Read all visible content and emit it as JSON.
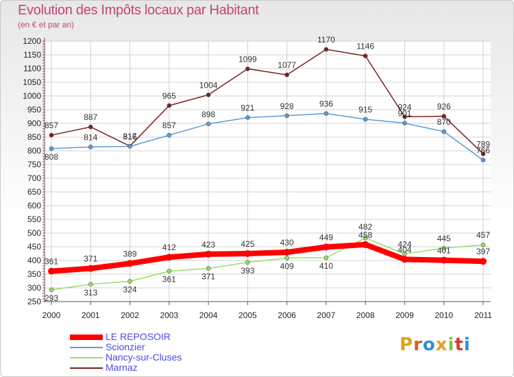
{
  "header": {
    "title": "Evolution des Impôts locaux par Habitant",
    "subtitle": "(en € et par an)"
  },
  "logo": {
    "text": "Proxiti",
    "colors": [
      "#e0a21c",
      "#e05a2a",
      "#2d8fd5",
      "#e0a21c",
      "#7cc243",
      "#d23b2a",
      "#2d8fd5"
    ]
  },
  "chart_data": {
    "type": "line",
    "x": [
      "2000",
      "2001",
      "2002",
      "2003",
      "2004",
      "2005",
      "2006",
      "2007",
      "2008",
      "2009",
      "2010",
      "2011"
    ],
    "ylim": [
      250,
      1200
    ],
    "yticks": [
      250,
      300,
      350,
      400,
      450,
      500,
      550,
      600,
      650,
      700,
      750,
      800,
      850,
      900,
      950,
      1000,
      1050,
      1100,
      1150,
      1200
    ],
    "grid": true,
    "legend_position": "bottom-left",
    "series": [
      {
        "name": "LE REPOSOIR",
        "color": "#ff0000",
        "values": [
          361,
          371,
          389,
          412,
          423,
          425,
          430,
          449,
          458,
          404,
          401,
          397
        ]
      },
      {
        "name": "Scionzier",
        "color": "#5b9bd5",
        "values": [
          808,
          814,
          816,
          857,
          898,
          921,
          928,
          936,
          915,
          901,
          870,
          766
        ]
      },
      {
        "name": "Nancy-sur-Cluses",
        "color": "#99dd66",
        "values": [
          293,
          313,
          324,
          361,
          371,
          393,
          409,
          410,
          482,
          424,
          445,
          457
        ]
      },
      {
        "name": "Marnaz",
        "color": "#7a1f1f",
        "values": [
          857,
          887,
          817,
          965,
          1004,
          1099,
          1077,
          1170,
          1146,
          924,
          926,
          789
        ]
      }
    ]
  }
}
